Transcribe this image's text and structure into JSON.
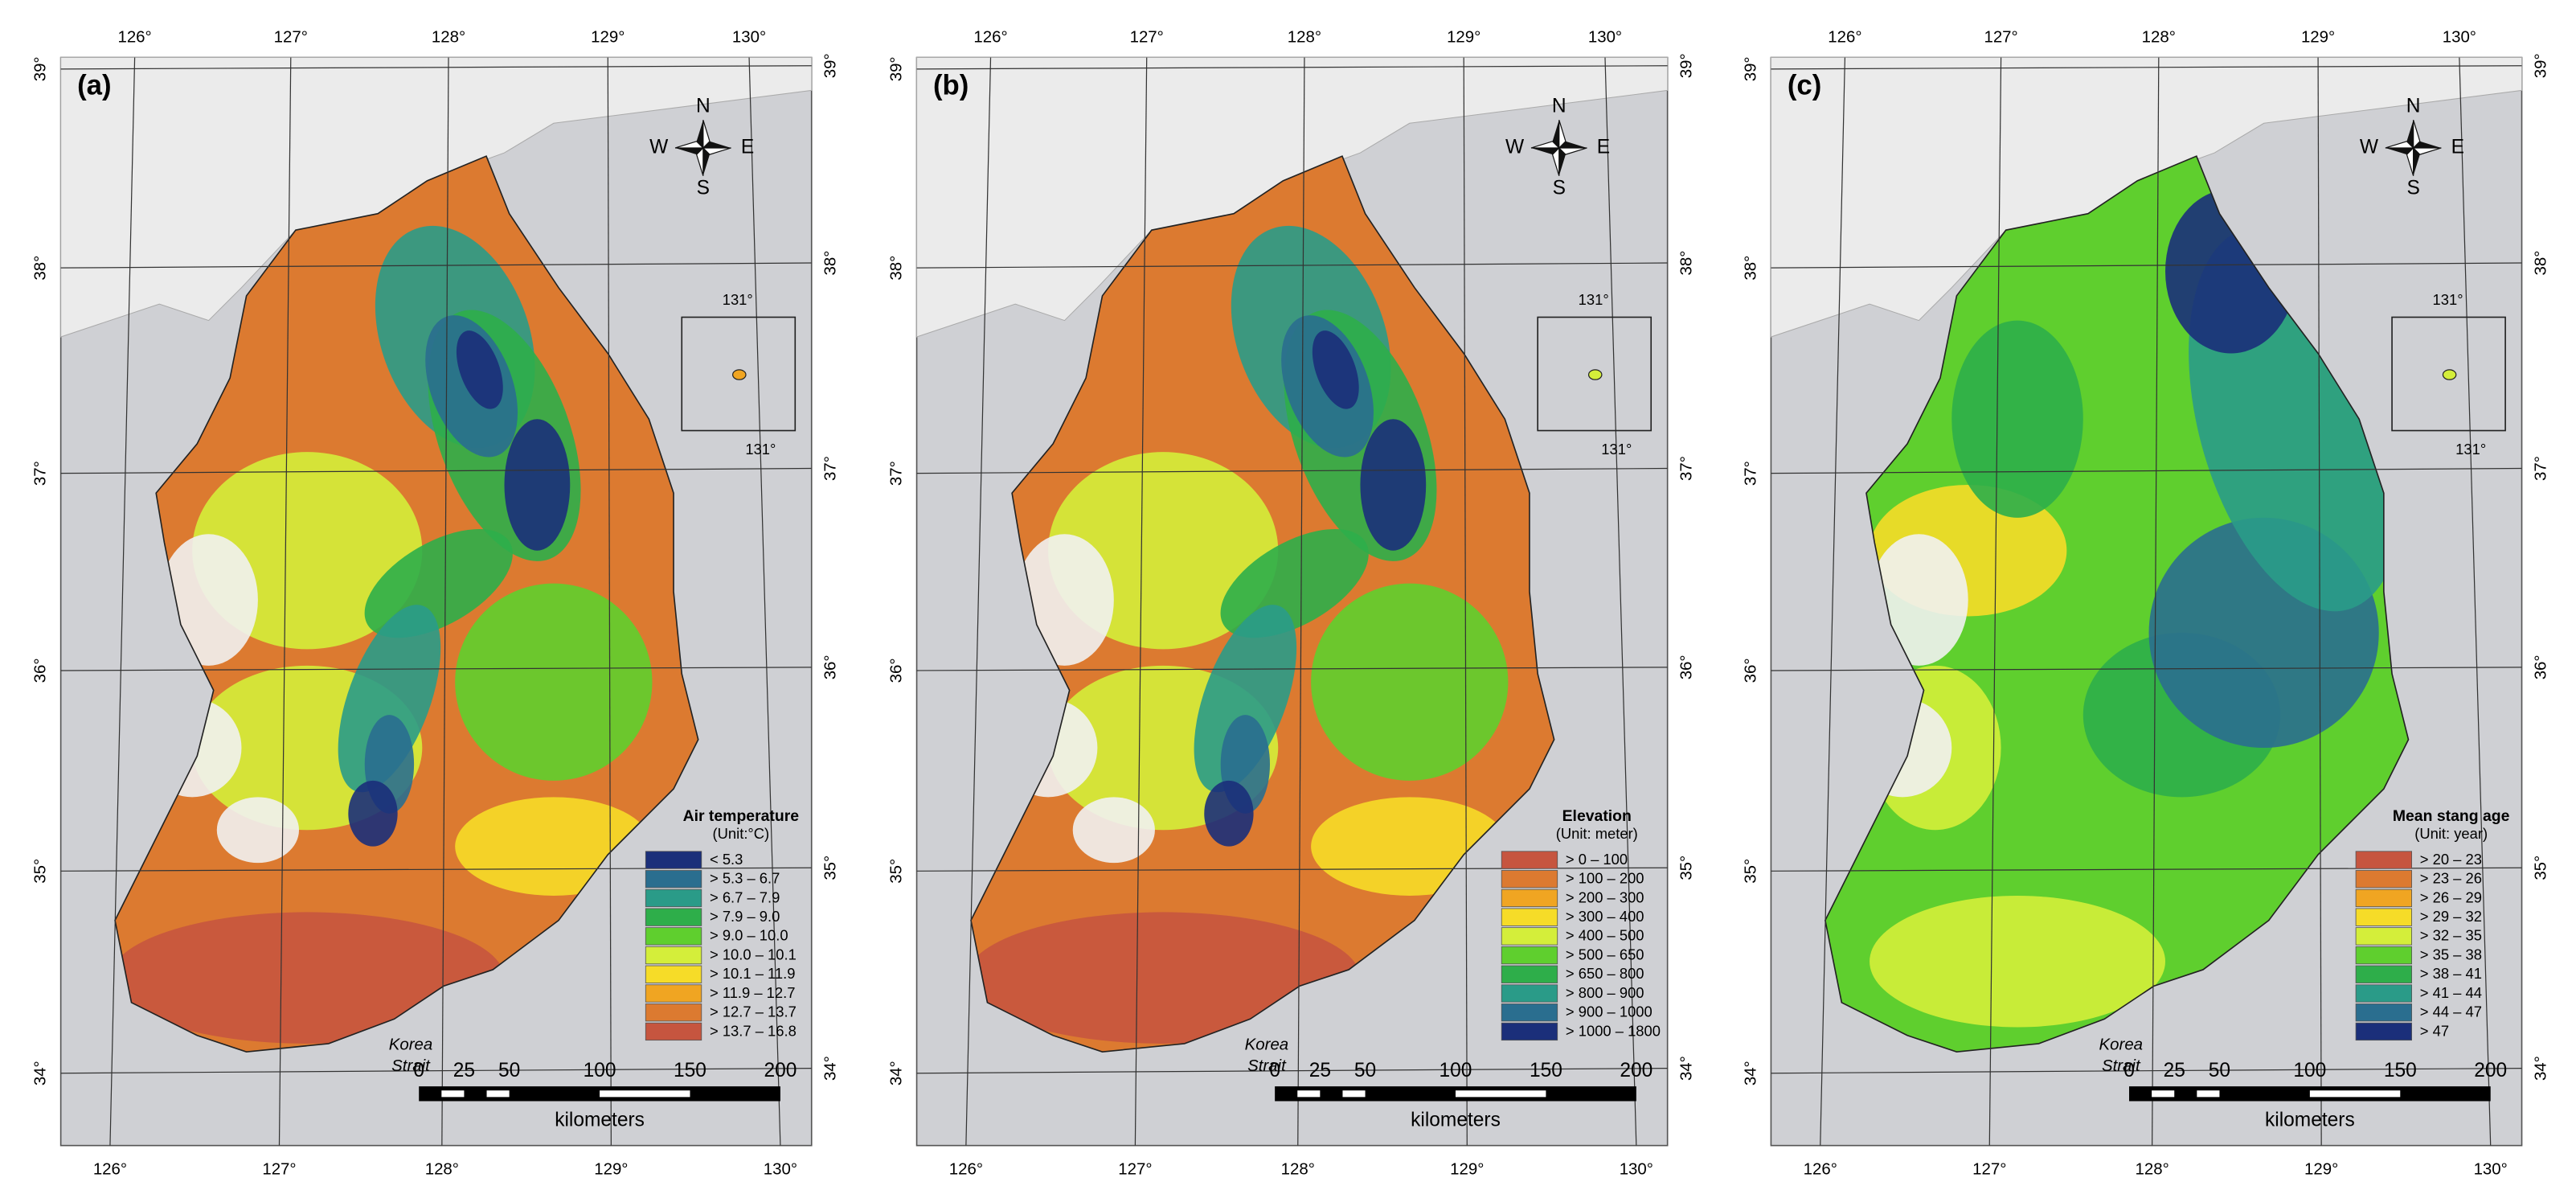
{
  "panels": [
    {
      "label": "(a)",
      "legend": {
        "title": "Air temperature",
        "unit": "(Unit:°C)",
        "items": [
          {
            "label": "< 5.3",
            "color": "#1b2f7a"
          },
          {
            "label": "> 5.3 – 6.7",
            "color": "#2a6e8f"
          },
          {
            "label": "> 6.7 – 7.9",
            "color": "#2a9b88"
          },
          {
            "label": "> 7.9 – 9.0",
            "color": "#2eae4a"
          },
          {
            "label": "> 9.0 – 10.0",
            "color": "#5fcf2e"
          },
          {
            "label": "> 10.0 – 10.1",
            "color": "#d4ee3a"
          },
          {
            "label": "> 10.1 – 11.9",
            "color": "#f6dc28"
          },
          {
            "label": "> 11.9 – 12.7",
            "color": "#f0a522"
          },
          {
            "label": "> 12.7 – 13.7",
            "color": "#dc7a30"
          },
          {
            "label": "> 13.7 – 16.8",
            "color": "#c6553f"
          }
        ]
      }
    },
    {
      "label": "(b)",
      "legend": {
        "title": "Elevation",
        "unit": "(Unit: meter)",
        "items": [
          {
            "label": "> 0 – 100",
            "color": "#c6553f"
          },
          {
            "label": "> 100 – 200",
            "color": "#dc7a30"
          },
          {
            "label": "> 200 – 300",
            "color": "#f0a522"
          },
          {
            "label": "> 300 – 400",
            "color": "#f6dc28"
          },
          {
            "label": "> 400 – 500",
            "color": "#d4ee3a"
          },
          {
            "label": "> 500 – 650",
            "color": "#5fcf2e"
          },
          {
            "label": "> 650 – 800",
            "color": "#2eae4a"
          },
          {
            "label": "> 800 – 900",
            "color": "#2a9b88"
          },
          {
            "label": "> 900 – 1000",
            "color": "#2a6e8f"
          },
          {
            "label": "> 1000 – 1800",
            "color": "#1b2f7a"
          }
        ]
      }
    },
    {
      "label": "(c)",
      "legend": {
        "title": "Mean stang age",
        "unit": "(Unit: year)",
        "items": [
          {
            "label": "> 20 – 23",
            "color": "#c6553f"
          },
          {
            "label": "> 23 – 26",
            "color": "#dc7a30"
          },
          {
            "label": "> 26 – 29",
            "color": "#f0a522"
          },
          {
            "label": "> 29 – 32",
            "color": "#f6dc28"
          },
          {
            "label": "> 32 – 35",
            "color": "#d4ee3a"
          },
          {
            "label": "> 35 – 38",
            "color": "#5fcf2e"
          },
          {
            "label": "> 38 – 41",
            "color": "#2eae4a"
          },
          {
            "label": "> 41 – 44",
            "color": "#2a9b88"
          },
          {
            "label": "> 44 – 47",
            "color": "#2a6e8f"
          },
          {
            "label": "> 47",
            "color": "#1b2f7a"
          }
        ]
      }
    }
  ],
  "longitudes": [
    "126°",
    "127°",
    "128°",
    "129°",
    "130°"
  ],
  "latitudes": [
    "39°",
    "38°",
    "37°",
    "36°",
    "35°",
    "34°"
  ],
  "compass": {
    "n": "N",
    "e": "E",
    "s": "S",
    "w": "W"
  },
  "inset_labels": [
    "131°",
    "131°"
  ],
  "scale_bar": {
    "ticks": [
      0,
      25,
      50,
      100,
      150,
      200
    ],
    "unit": "kilometers"
  },
  "place_label": [
    "Korea",
    "Strait"
  ]
}
